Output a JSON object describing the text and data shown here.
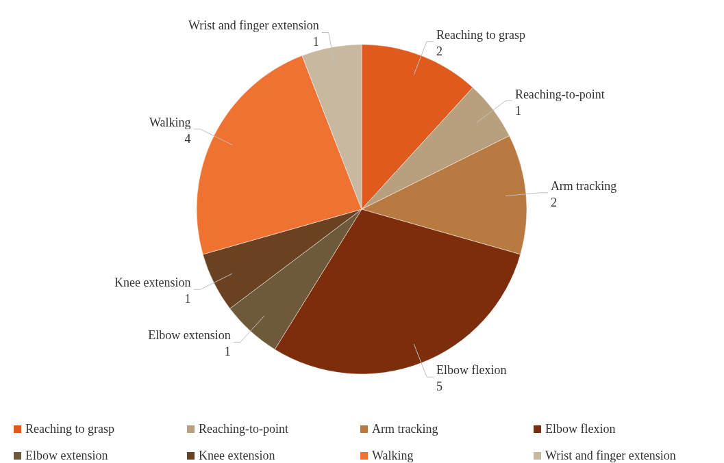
{
  "chart_data": {
    "type": "pie",
    "categories": [
      "Reaching to grasp",
      "Reaching-to-point",
      "Arm tracking",
      "Elbow flexion",
      "Elbow extension",
      "Knee extension",
      "Walking",
      "Wrist and finger extension"
    ],
    "values": [
      2,
      1,
      2,
      5,
      1,
      1,
      4,
      1
    ],
    "colors": [
      "#e05a1e",
      "#b8a07e",
      "#b87a40",
      "#7c2e0c",
      "#6e5a3a",
      "#6a4222",
      "#f07232",
      "#c8b8a0"
    ],
    "data_labels": true,
    "legend": "bottom"
  }
}
